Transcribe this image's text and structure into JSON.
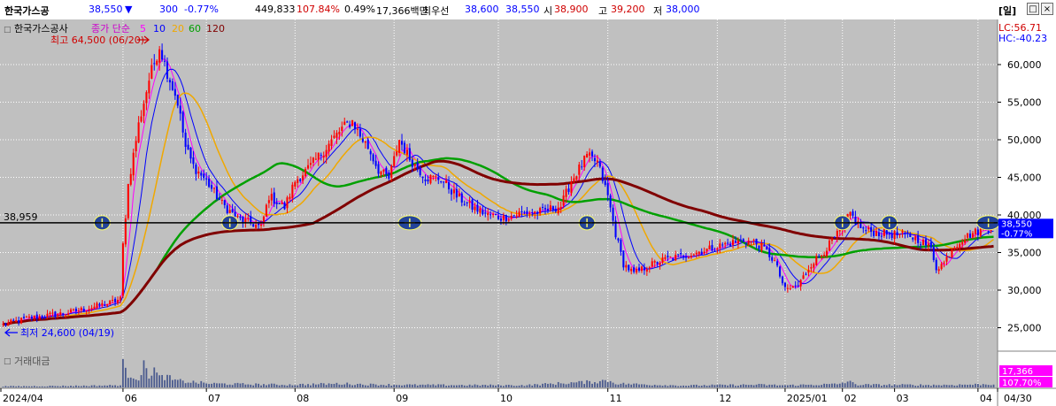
{
  "header": {
    "stock_name": "한국가스공",
    "price": "38,550",
    "down_arrow": "▼",
    "change": "300",
    "change_pct": "-0.77%",
    "volume": "449,833",
    "volume_ratio": "107.84%",
    "turnover_pct": "0.49%",
    "amount": "17,366백만",
    "best_label": "최우선",
    "best_bid": "38,600",
    "best_ask": "38,550",
    "open_label": "시",
    "open": "38,900",
    "high_label": "고",
    "high": "39,200",
    "low_label": "저",
    "low": "38,000",
    "period_button": "[일]"
  },
  "chart_data": {
    "type": "candlestick",
    "title": "한국가스공사",
    "legend": {
      "prefix": "종가 단순",
      "ma": [
        {
          "period": "5",
          "color": "#ff00ff"
        },
        {
          "period": "10",
          "color": "#0000ff"
        },
        {
          "period": "20",
          "color": "#f0a800"
        },
        {
          "period": "60",
          "color": "#00a000"
        },
        {
          "period": "120",
          "color": "#800000"
        }
      ]
    },
    "lc_label": "LC:56.71",
    "hc_label": "HC:-40.23",
    "high_annotation": "최고 64,500 (06/20)",
    "low_annotation": "최저 24,600 (04/19)",
    "hline": {
      "value": 38959,
      "label": "38,959"
    },
    "current_price_box": {
      "value": 38550,
      "price": "38,550",
      "pct": "-0.77%"
    },
    "y_ticks": [
      {
        "value": 60000,
        "label": "60,000"
      },
      {
        "value": 55000,
        "label": "55,000"
      },
      {
        "value": 50000,
        "label": "50,000"
      },
      {
        "value": 45000,
        "label": "45,000"
      },
      {
        "value": 40000,
        "label": "40,000"
      },
      {
        "value": 35000,
        "label": "35,000"
      },
      {
        "value": 30000,
        "label": "30,000"
      },
      {
        "value": 25000,
        "label": "25,000"
      }
    ],
    "ylim": [
      22000,
      66000
    ],
    "x_ticks": [
      "2024/04",
      "06",
      "07",
      "08",
      "09",
      "10",
      "11",
      "12",
      "2025/01",
      "02",
      "03",
      "04",
      "04/30"
    ],
    "volume_panel": {
      "title": "거래대금",
      "value_label": "17,366",
      "pct_label": "107.70%"
    },
    "price_keypoints": [
      [
        0,
        25400
      ],
      [
        10,
        26300
      ],
      [
        25,
        27000
      ],
      [
        40,
        28200
      ],
      [
        45,
        28800
      ],
      [
        46,
        36000
      ],
      [
        48,
        44000
      ],
      [
        52,
        52000
      ],
      [
        56,
        58000
      ],
      [
        60,
        62500
      ],
      [
        63,
        59000
      ],
      [
        67,
        55000
      ],
      [
        70,
        49000
      ],
      [
        73,
        46500
      ],
      [
        78,
        44500
      ],
      [
        84,
        41500
      ],
      [
        90,
        39500
      ],
      [
        96,
        38800
      ],
      [
        99,
        38300
      ],
      [
        102,
        42500
      ],
      [
        108,
        41000
      ],
      [
        112,
        44500
      ],
      [
        118,
        46500
      ],
      [
        124,
        49000
      ],
      [
        130,
        51500
      ],
      [
        134,
        52500
      ],
      [
        137,
        50500
      ],
      [
        140,
        49000
      ],
      [
        144,
        46000
      ],
      [
        148,
        44800
      ],
      [
        152,
        50000
      ],
      [
        156,
        47500
      ],
      [
        162,
        45000
      ],
      [
        168,
        44800
      ],
      [
        174,
        42500
      ],
      [
        180,
        41000
      ],
      [
        186,
        40000
      ],
      [
        192,
        39600
      ],
      [
        198,
        40200
      ],
      [
        206,
        40400
      ],
      [
        214,
        41200
      ],
      [
        218,
        44500
      ],
      [
        224,
        47800
      ],
      [
        228,
        47000
      ],
      [
        232,
        42500
      ],
      [
        235,
        37500
      ],
      [
        238,
        33500
      ],
      [
        242,
        32200
      ],
      [
        248,
        33300
      ],
      [
        254,
        34100
      ],
      [
        260,
        34500
      ],
      [
        266,
        35000
      ],
      [
        272,
        35600
      ],
      [
        278,
        36200
      ],
      [
        284,
        36600
      ],
      [
        288,
        36400
      ],
      [
        292,
        35500
      ],
      [
        296,
        33800
      ],
      [
        300,
        30000
      ],
      [
        305,
        30600
      ],
      [
        310,
        33500
      ],
      [
        314,
        34800
      ],
      [
        318,
        36500
      ],
      [
        322,
        38200
      ],
      [
        325,
        40200
      ],
      [
        327,
        39200
      ],
      [
        330,
        38000
      ],
      [
        336,
        37600
      ],
      [
        342,
        37400
      ],
      [
        348,
        37200
      ],
      [
        352,
        36600
      ],
      [
        356,
        35500
      ],
      [
        358,
        33000
      ],
      [
        361,
        33600
      ],
      [
        364,
        35600
      ],
      [
        368,
        36800
      ],
      [
        372,
        37600
      ],
      [
        376,
        38000
      ],
      [
        380,
        38550
      ]
    ],
    "volume_keypoints": [
      [
        0,
        0.04
      ],
      [
        30,
        0.06
      ],
      [
        45,
        0.08
      ],
      [
        46,
        0.95
      ],
      [
        47,
        0.55
      ],
      [
        50,
        0.45
      ],
      [
        52,
        0.35
      ],
      [
        54,
        0.75
      ],
      [
        56,
        0.5
      ],
      [
        58,
        0.65
      ],
      [
        60,
        0.35
      ],
      [
        62,
        0.42
      ],
      [
        66,
        0.25
      ],
      [
        70,
        0.22
      ],
      [
        80,
        0.14
      ],
      [
        100,
        0.11
      ],
      [
        110,
        0.1
      ],
      [
        130,
        0.14
      ],
      [
        140,
        0.11
      ],
      [
        160,
        0.09
      ],
      [
        200,
        0.08
      ],
      [
        215,
        0.16
      ],
      [
        225,
        0.2
      ],
      [
        232,
        0.26
      ],
      [
        236,
        0.14
      ],
      [
        260,
        0.07
      ],
      [
        290,
        0.1
      ],
      [
        300,
        0.08
      ],
      [
        320,
        0.12
      ],
      [
        324,
        0.22
      ],
      [
        328,
        0.1
      ],
      [
        360,
        0.09
      ],
      [
        380,
        0.12
      ]
    ]
  }
}
